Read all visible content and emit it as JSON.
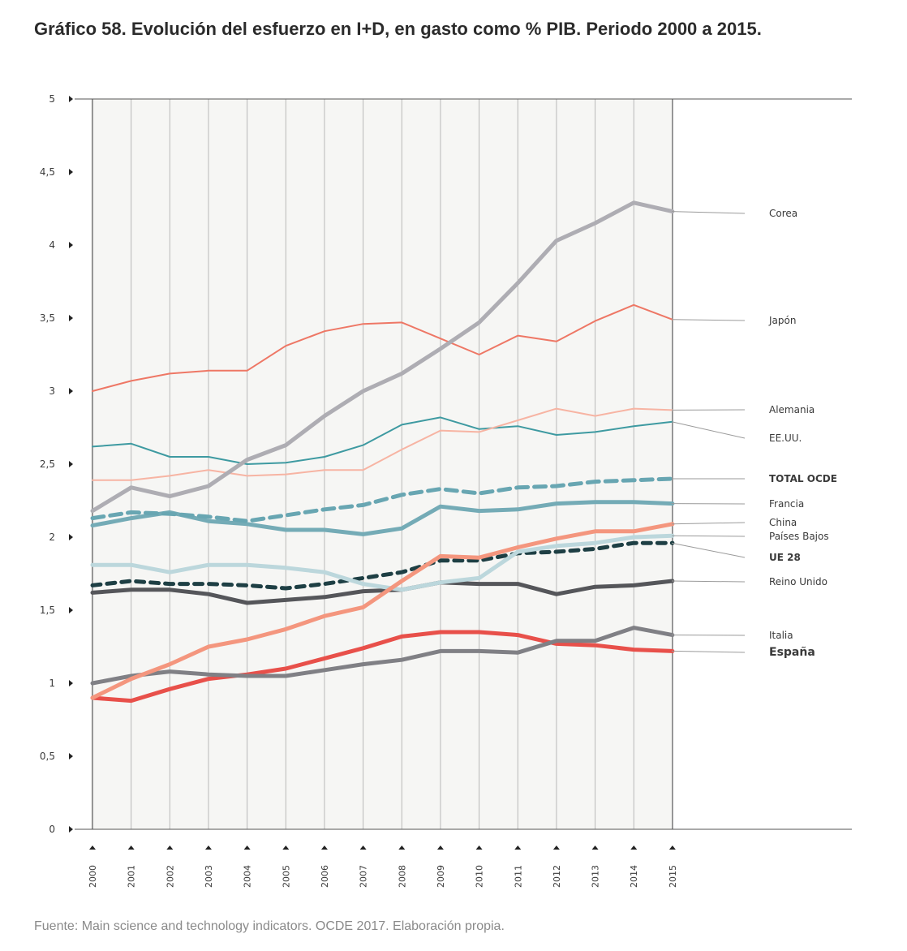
{
  "title": "Gráfico 58. Evolución del esfuerzo en I+D, en gasto como % PIB. Periodo 2000 a 2015.",
  "source": "Fuente: Main science and technology indicators. OCDE 2017. Elaboración propia.",
  "chart_data": {
    "type": "line",
    "title": "Gráfico 58. Evolución del esfuerzo en I+D, en gasto como % PIB. Periodo 2000 a 2015.",
    "xlabel": "",
    "ylabel": "",
    "x": [
      "2000",
      "2001",
      "2002",
      "2003",
      "2004",
      "2005",
      "2006",
      "2007",
      "2008",
      "2009",
      "2010",
      "2011",
      "2012",
      "2013",
      "2014",
      "2015"
    ],
    "ylim": [
      0,
      5
    ],
    "yticks": [
      0,
      0.5,
      1,
      1.5,
      2,
      2.5,
      3,
      3.5,
      4,
      4.5,
      5
    ],
    "ytick_labels": [
      "0",
      "0,5",
      "1",
      "1,5",
      "2",
      "2,5",
      "3",
      "3,5",
      "4",
      "4,5",
      "5"
    ],
    "grid": "vertical",
    "legend": "right",
    "series": [
      {
        "name": "Corea",
        "color": "#aeadb3",
        "width": 5,
        "dash": "",
        "values": [
          2.18,
          2.34,
          2.28,
          2.35,
          2.53,
          2.63,
          2.83,
          3.0,
          3.12,
          3.29,
          3.47,
          3.74,
          4.03,
          4.15,
          4.29,
          4.23
        ]
      },
      {
        "name": "Japón",
        "color": "#ee7765",
        "width": 2,
        "dash": "",
        "values": [
          3.0,
          3.07,
          3.12,
          3.14,
          3.14,
          3.31,
          3.41,
          3.46,
          3.47,
          3.36,
          3.25,
          3.38,
          3.34,
          3.48,
          3.59,
          3.49
        ]
      },
      {
        "name": "Alemania",
        "color": "#f7b4a3",
        "width": 2,
        "dash": "",
        "values": [
          2.39,
          2.39,
          2.42,
          2.46,
          2.42,
          2.43,
          2.46,
          2.46,
          2.6,
          2.73,
          2.72,
          2.8,
          2.88,
          2.83,
          2.88,
          2.87
        ]
      },
      {
        "name": "EE.UU.",
        "color": "#3e9aa1",
        "width": 2,
        "dash": "",
        "values": [
          2.62,
          2.64,
          2.55,
          2.55,
          2.5,
          2.51,
          2.55,
          2.63,
          2.77,
          2.82,
          2.74,
          2.76,
          2.7,
          2.72,
          2.76,
          2.79
        ]
      },
      {
        "name": "TOTAL OCDE",
        "color": "#68a6b2",
        "width": 5,
        "dash": "14,8",
        "values": [
          2.13,
          2.17,
          2.16,
          2.14,
          2.11,
          2.15,
          2.19,
          2.22,
          2.29,
          2.33,
          2.3,
          2.34,
          2.35,
          2.38,
          2.39,
          2.4
        ]
      },
      {
        "name": "Francia",
        "color": "#74abb6",
        "width": 5,
        "dash": "",
        "values": [
          2.08,
          2.13,
          2.17,
          2.11,
          2.09,
          2.05,
          2.05,
          2.02,
          2.06,
          2.21,
          2.18,
          2.19,
          2.23,
          2.24,
          2.24,
          2.23
        ]
      },
      {
        "name": "China",
        "color": "#f4967e",
        "width": 5,
        "dash": "",
        "values": [
          0.9,
          1.03,
          1.13,
          1.25,
          1.3,
          1.37,
          1.46,
          1.52,
          1.7,
          1.87,
          1.86,
          1.93,
          1.99,
          2.04,
          2.04,
          2.09
        ]
      },
      {
        "name": "Países Bajos",
        "color": "#bcd7dc",
        "width": 5,
        "dash": "",
        "values": [
          1.81,
          1.81,
          1.76,
          1.81,
          1.81,
          1.79,
          1.76,
          1.68,
          1.64,
          1.69,
          1.72,
          1.9,
          1.94,
          1.96,
          2.0,
          2.01
        ]
      },
      {
        "name": "UE 28",
        "color": "#1e3f44",
        "width": 5,
        "dash": "10,8",
        "values": [
          1.67,
          1.7,
          1.68,
          1.68,
          1.67,
          1.65,
          1.68,
          1.72,
          1.76,
          1.84,
          1.84,
          1.89,
          1.9,
          1.92,
          1.96,
          1.96
        ]
      },
      {
        "name": "Reino Unido",
        "color": "#55565a",
        "width": 5,
        "dash": "",
        "values": [
          1.62,
          1.64,
          1.64,
          1.61,
          1.55,
          1.57,
          1.59,
          1.63,
          1.64,
          1.69,
          1.68,
          1.68,
          1.61,
          1.66,
          1.67,
          1.7
        ]
      },
      {
        "name": "Italia",
        "color": "#808085",
        "width": 5,
        "dash": "",
        "values": [
          1.0,
          1.05,
          1.08,
          1.06,
          1.05,
          1.05,
          1.09,
          1.13,
          1.16,
          1.22,
          1.22,
          1.21,
          1.29,
          1.29,
          1.38,
          1.33
        ]
      },
      {
        "name": "España",
        "color": "#e8504a",
        "width": 5,
        "dash": "",
        "values": [
          0.9,
          0.88,
          0.96,
          1.03,
          1.06,
          1.1,
          1.17,
          1.24,
          1.32,
          1.35,
          1.35,
          1.33,
          1.27,
          1.26,
          1.23,
          1.22
        ]
      }
    ]
  }
}
